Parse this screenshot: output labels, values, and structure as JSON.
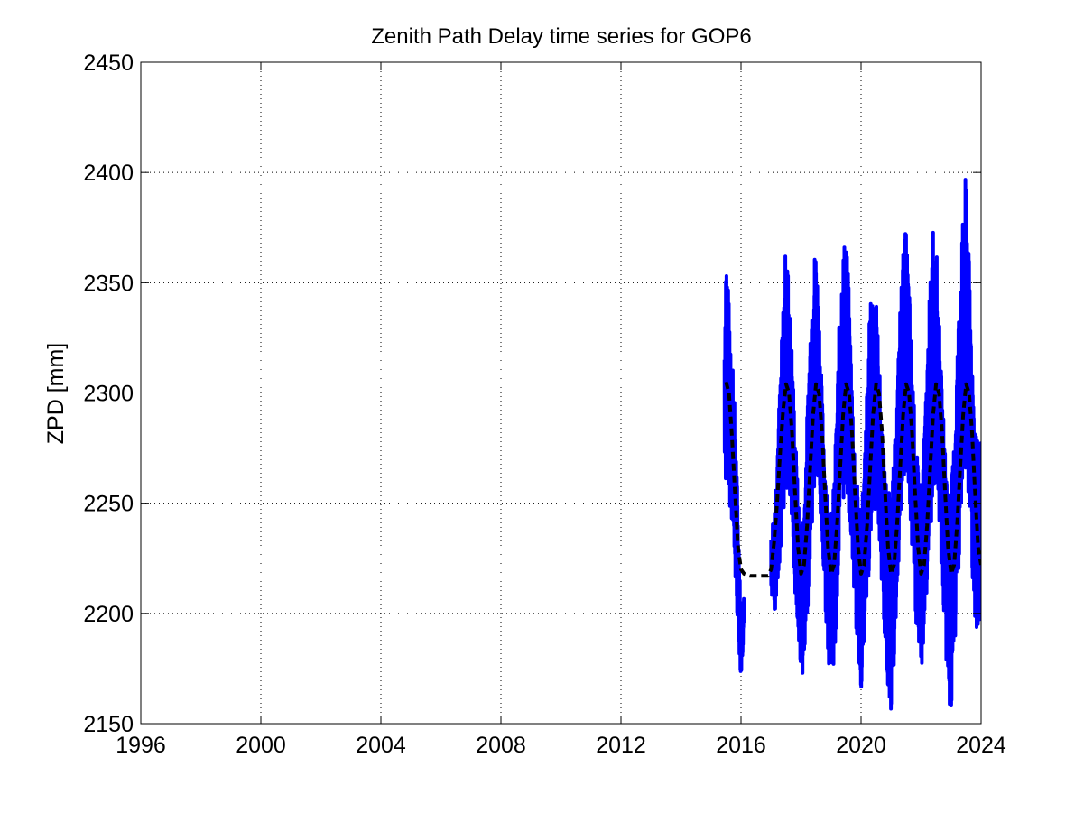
{
  "chart_data": {
    "type": "line",
    "title": "Zenith Path Delay time series for GOP6",
    "xlabel": "",
    "ylabel": "ZPD [mm]",
    "xlim": [
      1996,
      2024
    ],
    "ylim": [
      2150,
      2450
    ],
    "x_ticks": [
      "1996",
      "2000",
      "2004",
      "2008",
      "2012",
      "2016",
      "2020",
      "2024"
    ],
    "y_ticks": [
      "2150",
      "2200",
      "2250",
      "2300",
      "2350",
      "2400",
      "2450"
    ],
    "grid": true,
    "series": [
      {
        "style": "solid",
        "color": "#0000ff",
        "segments": [
          {
            "x": [
              2015.45,
              2015.5,
              2015.55,
              2015.6,
              2015.65,
              2015.7,
              2015.75,
              2015.8,
              2015.85,
              2015.9,
              2015.95,
              2016.0,
              2016.05,
              2016.1
            ],
            "y_low": [
              2265,
              2255,
              2262,
              2255,
              2245,
              2240,
              2230,
              2215,
              2205,
              2190,
              2180,
              2170,
              2180,
              2195
            ],
            "y_high": [
              2325,
              2370,
              2355,
              2340,
              2330,
              2325,
              2310,
              2290,
              2270,
              2245,
              2225,
              2205,
              2200,
              2210
            ]
          },
          {
            "x": [
              2017.0,
              2017.1,
              2017.2,
              2017.3,
              2017.4,
              2017.5,
              2017.6,
              2017.7,
              2017.8,
              2017.9,
              2018.0,
              2018.1,
              2018.2,
              2018.3,
              2018.4,
              2018.5,
              2018.6,
              2018.7,
              2018.8,
              2018.9,
              2019.0,
              2019.1,
              2019.2,
              2019.3,
              2019.4,
              2019.5,
              2019.6,
              2019.7,
              2019.8,
              2019.9,
              2020.0,
              2020.1,
              2020.2,
              2020.3,
              2020.4,
              2020.5,
              2020.6,
              2020.7,
              2020.8,
              2020.9,
              2021.0,
              2021.1,
              2021.2,
              2021.3,
              2021.4,
              2021.5,
              2021.6,
              2021.7,
              2021.8,
              2021.9,
              2022.0,
              2022.1,
              2022.2,
              2022.3,
              2022.4,
              2022.5,
              2022.6,
              2022.7,
              2022.8,
              2022.9,
              2023.0,
              2023.1,
              2023.2,
              2023.3,
              2023.4,
              2023.5,
              2023.6,
              2023.7,
              2023.8,
              2023.9,
              2024.0
            ],
            "y_low": [
              2205,
              2195,
              2210,
              2225,
              2245,
              2255,
              2250,
              2235,
              2210,
              2185,
              2175,
              2170,
              2195,
              2225,
              2245,
              2260,
              2250,
              2230,
              2205,
              2180,
              2170,
              2175,
              2200,
              2235,
              2250,
              2255,
              2245,
              2225,
              2200,
              2180,
              2165,
              2180,
              2205,
              2225,
              2240,
              2250,
              2235,
              2210,
              2185,
              2165,
              2155,
              2175,
              2210,
              2235,
              2250,
              2265,
              2250,
              2225,
              2200,
              2185,
              2170,
              2190,
              2210,
              2235,
              2250,
              2260,
              2240,
              2215,
              2185,
              2165,
              2150,
              2175,
              2205,
              2235,
              2255,
              2265,
              2245,
              2220,
              2195,
              2180,
              2185
            ],
            "y_high": [
              2235,
              2250,
              2275,
              2305,
              2340,
              2370,
              2350,
              2320,
              2285,
              2255,
              2240,
              2250,
              2290,
              2330,
              2360,
              2368,
              2340,
              2300,
              2270,
              2250,
              2245,
              2260,
              2300,
              2345,
              2365,
              2375,
              2345,
              2305,
              2270,
              2255,
              2250,
              2265,
              2305,
              2340,
              2350,
              2345,
              2315,
              2285,
              2265,
              2255,
              2255,
              2270,
              2300,
              2340,
              2365,
              2375,
              2350,
              2315,
              2285,
              2265,
              2260,
              2280,
              2315,
              2350,
              2378,
              2370,
              2335,
              2300,
              2275,
              2260,
              2255,
              2280,
              2320,
              2355,
              2380,
              2402,
              2360,
              2320,
              2290,
              2275,
              2280
            ]
          }
        ]
      },
      {
        "style": "dashed",
        "color": "#000000",
        "x": [
          2015.5,
          2015.6,
          2015.7,
          2015.8,
          2015.9,
          2016.0,
          2016.1,
          2016.3,
          2016.6,
          2016.9,
          2017.0,
          2017.1,
          2017.2,
          2017.3,
          2017.4,
          2017.5,
          2017.6,
          2017.7,
          2017.8,
          2017.9,
          2018.0,
          2018.1,
          2018.2,
          2018.3,
          2018.4,
          2018.5,
          2018.6,
          2018.7,
          2018.8,
          2018.9,
          2019.0,
          2019.1,
          2019.2,
          2019.3,
          2019.4,
          2019.5,
          2019.6,
          2019.7,
          2019.8,
          2019.9,
          2020.0,
          2020.1,
          2020.2,
          2020.3,
          2020.4,
          2020.5,
          2020.6,
          2020.7,
          2020.8,
          2020.9,
          2021.0,
          2021.1,
          2021.2,
          2021.3,
          2021.4,
          2021.5,
          2021.6,
          2021.7,
          2021.8,
          2021.9,
          2022.0,
          2022.1,
          2022.2,
          2022.3,
          2022.4,
          2022.5,
          2022.6,
          2022.7,
          2022.8,
          2022.9,
          2023.0,
          2023.1,
          2023.2,
          2023.3,
          2023.4,
          2023.5,
          2023.6,
          2023.7,
          2023.8,
          2023.9,
          2024.0
        ],
        "y": [
          2305,
          2300,
          2280,
          2255,
          2230,
          2220,
          2218,
          2217,
          2217,
          2217,
          2220,
          2232,
          2250,
          2272,
          2292,
          2304,
          2300,
          2282,
          2255,
          2230,
          2218,
          2222,
          2240,
          2265,
          2290,
          2304,
          2300,
          2282,
          2255,
          2230,
          2218,
          2222,
          2240,
          2265,
          2290,
          2304,
          2300,
          2282,
          2255,
          2230,
          2218,
          2222,
          2240,
          2265,
          2290,
          2304,
          2300,
          2282,
          2255,
          2230,
          2218,
          2222,
          2240,
          2265,
          2290,
          2304,
          2300,
          2282,
          2255,
          2230,
          2218,
          2222,
          2240,
          2265,
          2290,
          2304,
          2300,
          2282,
          2255,
          2230,
          2218,
          2222,
          2240,
          2265,
          2290,
          2304,
          2300,
          2282,
          2255,
          2230,
          2222
        ]
      }
    ]
  }
}
